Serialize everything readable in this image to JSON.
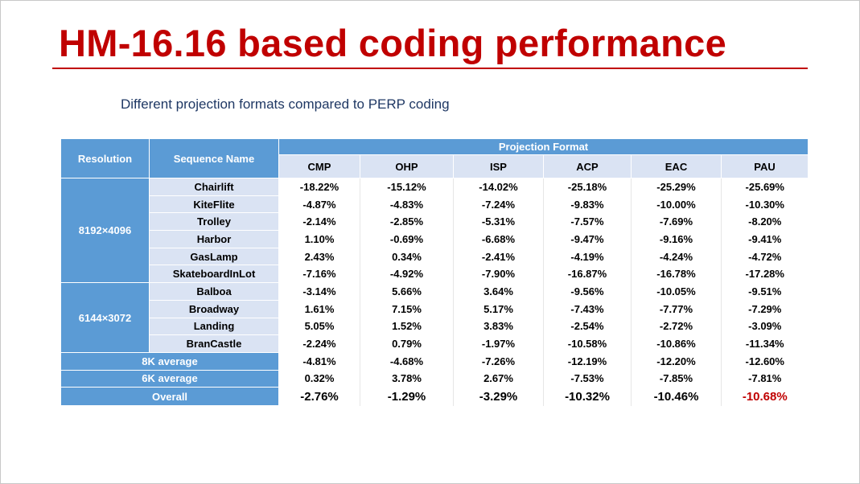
{
  "title": "HM-16.16 based coding performance",
  "subtitle": "Different projection formats compared to PERP coding",
  "table": {
    "col_resolution": "Resolution",
    "col_sequence": "Sequence Name",
    "group_header": "Projection Format",
    "formats": [
      "CMP",
      "OHP",
      "ISP",
      "ACP",
      "EAC",
      "PAU"
    ],
    "groups": [
      {
        "resolution": "8192×4096",
        "rows": [
          {
            "name": "Chairlift",
            "values": [
              "-18.22%",
              "-15.12%",
              "-14.02%",
              "-25.18%",
              "-25.29%",
              "-25.69%"
            ]
          },
          {
            "name": "KiteFlite",
            "values": [
              "-4.87%",
              "-4.83%",
              "-7.24%",
              "-9.83%",
              "-10.00%",
              "-10.30%"
            ]
          },
          {
            "name": "Trolley",
            "values": [
              "-2.14%",
              "-2.85%",
              "-5.31%",
              "-7.57%",
              "-7.69%",
              "-8.20%"
            ]
          },
          {
            "name": "Harbor",
            "values": [
              "1.10%",
              "-0.69%",
              "-6.68%",
              "-9.47%",
              "-9.16%",
              "-9.41%"
            ]
          },
          {
            "name": "GasLamp",
            "values": [
              "2.43%",
              "0.34%",
              "-2.41%",
              "-4.19%",
              "-4.24%",
              "-4.72%"
            ]
          },
          {
            "name": "SkateboardInLot",
            "values": [
              "-7.16%",
              "-4.92%",
              "-7.90%",
              "-16.87%",
              "-16.78%",
              "-17.28%"
            ]
          }
        ]
      },
      {
        "resolution": "6144×3072",
        "rows": [
          {
            "name": "Balboa",
            "values": [
              "-3.14%",
              "5.66%",
              "3.64%",
              "-9.56%",
              "-10.05%",
              "-9.51%"
            ]
          },
          {
            "name": "Broadway",
            "values": [
              "1.61%",
              "7.15%",
              "5.17%",
              "-7.43%",
              "-7.77%",
              "-7.29%"
            ]
          },
          {
            "name": "Landing",
            "values": [
              "5.05%",
              "1.52%",
              "3.83%",
              "-2.54%",
              "-2.72%",
              "-3.09%"
            ]
          },
          {
            "name": "BranCastle",
            "values": [
              "-2.24%",
              "0.79%",
              "-1.97%",
              "-10.58%",
              "-10.86%",
              "-11.34%"
            ]
          }
        ]
      }
    ],
    "summaries": [
      {
        "label": "8K average",
        "values": [
          "-4.81%",
          "-4.68%",
          "-7.26%",
          "-12.19%",
          "-12.20%",
          "-12.60%"
        ]
      },
      {
        "label": "6K average",
        "values": [
          "0.32%",
          "3.78%",
          "2.67%",
          "-7.53%",
          "-7.85%",
          "-7.81%"
        ]
      },
      {
        "label": "Overall",
        "values": [
          "-2.76%",
          "-1.29%",
          "-3.29%",
          "-10.32%",
          "-10.46%",
          "-10.68%"
        ]
      }
    ],
    "highlight_color": "#c00000"
  }
}
